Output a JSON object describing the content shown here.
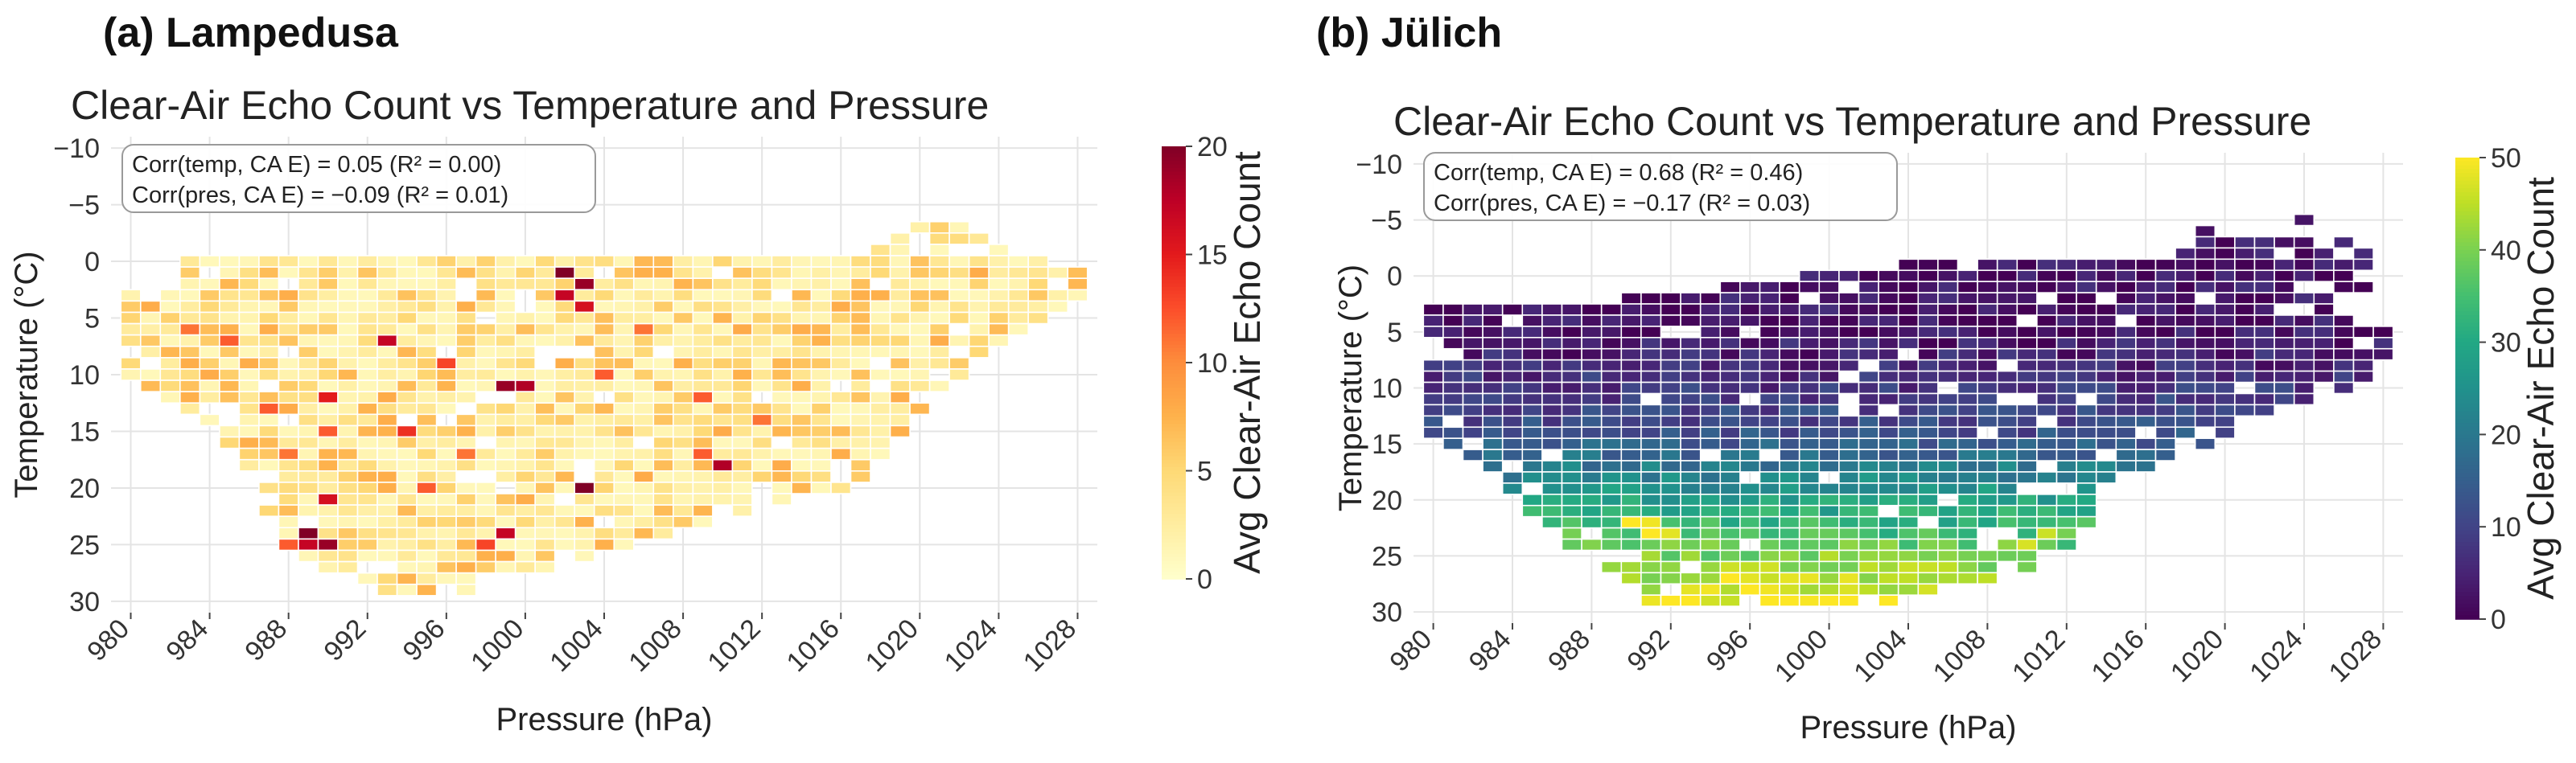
{
  "chart_data": [
    {
      "id": "a",
      "type": "heatmap",
      "panel_label": "(a) Lampedusa",
      "title": "Clear-Air Echo Count vs Temperature and Pressure",
      "xlabel": "Pressure (hPa)",
      "ylabel": "Temperature (°C)",
      "colorbar_label": "Avg Clear-Air Echo Count",
      "colormap": "YlOrRd",
      "xlim": [
        979,
        1029
      ],
      "ylim": [
        -11,
        31
      ],
      "clim": [
        0,
        20
      ],
      "xticks": [
        980,
        984,
        988,
        992,
        996,
        1000,
        1004,
        1008,
        1012,
        1016,
        1020,
        1024,
        1028
      ],
      "yticks": [
        -10,
        -5,
        0,
        5,
        10,
        15,
        20,
        25,
        30
      ],
      "yticklabels": [
        "−10",
        "−5",
        "0",
        "5",
        "10",
        "15",
        "20",
        "25",
        "30"
      ],
      "cbar_ticks": [
        0,
        5,
        10,
        15,
        20
      ],
      "annotations": [
        "Corr(temp, CA E) = 0.05 (R² = 0.00)",
        "Corr(pres, CA E) = −0.09 (R² = 0.01)"
      ],
      "grid": true,
      "bin_width_hPa": 1,
      "bin_height_C": 1,
      "extent_rows": [
        {
          "t": -3,
          "p": [
            1020,
            1022
          ]
        },
        {
          "t": -2,
          "p": [
            1019,
            1023
          ]
        },
        {
          "t": -1,
          "p": [
            1018,
            1024
          ]
        },
        {
          "t": 0,
          "p": [
            983,
            1026
          ]
        },
        {
          "t": 1,
          "p": [
            982,
            1028
          ]
        },
        {
          "t": 2,
          "p": [
            981,
            1028
          ]
        },
        {
          "t": 3,
          "p": [
            980,
            1028
          ]
        },
        {
          "t": 4,
          "p": [
            980,
            1027
          ]
        },
        {
          "t": 5,
          "p": [
            980,
            1026
          ]
        },
        {
          "t": 6,
          "p": [
            980,
            1025
          ]
        },
        {
          "t": 7,
          "p": [
            980,
            1024
          ]
        },
        {
          "t": 8,
          "p": [
            980,
            1023
          ]
        },
        {
          "t": 9,
          "p": [
            980,
            1022
          ]
        },
        {
          "t": 10,
          "p": [
            980,
            1022
          ]
        },
        {
          "t": 11,
          "p": [
            981,
            1021
          ]
        },
        {
          "t": 12,
          "p": [
            982,
            1020
          ]
        },
        {
          "t": 13,
          "p": [
            983,
            1020
          ]
        },
        {
          "t": 14,
          "p": [
            984,
            1019
          ]
        },
        {
          "t": 15,
          "p": [
            985,
            1019
          ]
        },
        {
          "t": 16,
          "p": [
            985,
            1018
          ]
        },
        {
          "t": 17,
          "p": [
            986,
            1018
          ]
        },
        {
          "t": 18,
          "p": [
            986,
            1017
          ]
        },
        {
          "t": 19,
          "p": [
            987,
            1017
          ]
        },
        {
          "t": 20,
          "p": [
            987,
            1016
          ]
        },
        {
          "t": 21,
          "p": [
            987,
            1013
          ]
        },
        {
          "t": 22,
          "p": [
            987,
            1011
          ]
        },
        {
          "t": 23,
          "p": [
            988,
            1009
          ]
        },
        {
          "t": 24,
          "p": [
            988,
            1007
          ]
        },
        {
          "t": 25,
          "p": [
            988,
            1005
          ]
        },
        {
          "t": 26,
          "p": [
            989,
            1003
          ]
        },
        {
          "t": 27,
          "p": [
            990,
            1001
          ]
        },
        {
          "t": 28,
          "p": [
            991,
            999
          ]
        },
        {
          "t": 29,
          "p": [
            992,
            997
          ]
        }
      ],
      "background_value_range": [
        1,
        8
      ],
      "hot_cells": [
        {
          "p": 1002,
          "t": 1,
          "v": 20
        },
        {
          "p": 1003,
          "t": 2,
          "v": 19
        },
        {
          "p": 1002,
          "t": 3,
          "v": 17
        },
        {
          "p": 1003,
          "t": 4,
          "v": 16
        },
        {
          "p": 1001,
          "t": 8,
          "v": 17
        },
        {
          "p": 999,
          "t": 11,
          "v": 19
        },
        {
          "p": 1000,
          "t": 11,
          "v": 18
        },
        {
          "p": 1004,
          "t": 10,
          "v": 12
        },
        {
          "p": 1004,
          "t": 12,
          "v": 14
        },
        {
          "p": 996,
          "t": 9,
          "v": 13
        },
        {
          "p": 993,
          "t": 7,
          "v": 17
        },
        {
          "p": 994,
          "t": 14,
          "v": 16
        },
        {
          "p": 994,
          "t": 15,
          "v": 14
        },
        {
          "p": 990,
          "t": 12,
          "v": 15
        },
        {
          "p": 990,
          "t": 15,
          "v": 12
        },
        {
          "p": 987,
          "t": 13,
          "v": 12
        },
        {
          "p": 988,
          "t": 17,
          "v": 11
        },
        {
          "p": 985,
          "t": 7,
          "v": 12
        },
        {
          "p": 983,
          "t": 6,
          "v": 11
        },
        {
          "p": 990,
          "t": 21,
          "v": 16
        },
        {
          "p": 989,
          "t": 23,
          "v": 18
        },
        {
          "p": 989,
          "t": 24,
          "v": 20
        },
        {
          "p": 990,
          "t": 25,
          "v": 19
        },
        {
          "p": 989,
          "t": 25,
          "v": 17
        },
        {
          "p": 988,
          "t": 25,
          "v": 12
        },
        {
          "p": 987,
          "t": 24,
          "v": 10
        },
        {
          "p": 999,
          "t": 24,
          "v": 17
        },
        {
          "p": 998,
          "t": 25,
          "v": 13
        },
        {
          "p": 1003,
          "t": 20,
          "v": 20
        },
        {
          "p": 1003,
          "t": 19,
          "v": 13
        },
        {
          "p": 1010,
          "t": 18,
          "v": 18
        },
        {
          "p": 1009,
          "t": 17,
          "v": 12
        },
        {
          "p": 1009,
          "t": 12,
          "v": 12
        },
        {
          "p": 1012,
          "t": 14,
          "v": 11
        },
        {
          "p": 1006,
          "t": 6,
          "v": 11
        },
        {
          "p": 997,
          "t": 17,
          "v": 11
        },
        {
          "p": 995,
          "t": 20,
          "v": 12
        }
      ]
    },
    {
      "id": "b",
      "type": "heatmap",
      "panel_label": "(b) Jülich",
      "title": "Clear-Air Echo Count vs Temperature and Pressure",
      "xlabel": "Pressure (hPa)",
      "ylabel": "Temperature (°C)",
      "colorbar_label": "Avg Clear-Air Echo Count",
      "colormap": "viridis",
      "xlim": [
        979,
        1029
      ],
      "ylim": [
        -11,
        31
      ],
      "clim": [
        0,
        50
      ],
      "xticks": [
        980,
        984,
        988,
        992,
        996,
        1000,
        1004,
        1008,
        1012,
        1016,
        1020,
        1024,
        1028
      ],
      "yticks": [
        -10,
        -5,
        0,
        5,
        10,
        15,
        20,
        25,
        30
      ],
      "yticklabels": [
        "−10",
        "−5",
        "0",
        "5",
        "10",
        "15",
        "20",
        "25",
        "30"
      ],
      "cbar_ticks": [
        0,
        10,
        20,
        30,
        40,
        50
      ],
      "annotations": [
        "Corr(temp, CA E) = 0.68 (R² = 0.46)",
        "Corr(pres, CA E) = −0.17 (R² = 0.03)"
      ],
      "grid": true,
      "bin_width_hPa": 1,
      "bin_height_C": 1,
      "extent_rows": [
        {
          "t": -5,
          "p": [
            1024,
            1025
          ]
        },
        {
          "t": -4,
          "p": [
            1019,
            1020
          ]
        },
        {
          "t": -3,
          "p": [
            1019,
            1026
          ]
        },
        {
          "t": -2,
          "p": [
            1018,
            1027
          ]
        },
        {
          "t": -1,
          "p": [
            1004,
            1027
          ]
        },
        {
          "t": 0,
          "p": [
            999,
            1027
          ]
        },
        {
          "t": 1,
          "p": [
            995,
            1027
          ]
        },
        {
          "t": 2,
          "p": [
            990,
            1026
          ]
        },
        {
          "t": 3,
          "p": [
            980,
            1026
          ]
        },
        {
          "t": 4,
          "p": [
            980,
            1027
          ]
        },
        {
          "t": 5,
          "p": [
            980,
            1028
          ]
        },
        {
          "t": 6,
          "p": [
            980,
            1028
          ]
        },
        {
          "t": 7,
          "p": [
            980,
            1028
          ]
        },
        {
          "t": 8,
          "p": [
            980,
            1027
          ]
        },
        {
          "t": 9,
          "p": [
            980,
            1027
          ]
        },
        {
          "t": 10,
          "p": [
            980,
            1026
          ]
        },
        {
          "t": 11,
          "p": [
            980,
            1024
          ]
        },
        {
          "t": 12,
          "p": [
            980,
            1022
          ]
        },
        {
          "t": 13,
          "p": [
            980,
            1021
          ]
        },
        {
          "t": 14,
          "p": [
            980,
            1020
          ]
        },
        {
          "t": 15,
          "p": [
            981,
            1019
          ]
        },
        {
          "t": 16,
          "p": [
            982,
            1018
          ]
        },
        {
          "t": 17,
          "p": [
            983,
            1016
          ]
        },
        {
          "t": 18,
          "p": [
            984,
            1014
          ]
        },
        {
          "t": 19,
          "p": [
            984,
            1013
          ]
        },
        {
          "t": 20,
          "p": [
            985,
            1013
          ]
        },
        {
          "t": 21,
          "p": [
            985,
            1013
          ]
        },
        {
          "t": 22,
          "p": [
            986,
            1013
          ]
        },
        {
          "t": 23,
          "p": [
            987,
            1012
          ]
        },
        {
          "t": 24,
          "p": [
            987,
            1012
          ]
        },
        {
          "t": 25,
          "p": [
            988,
            1011
          ]
        },
        {
          "t": 26,
          "p": [
            989,
            1010
          ]
        },
        {
          "t": 27,
          "p": [
            990,
            1008
          ]
        },
        {
          "t": 28,
          "p": [
            991,
            1005
          ]
        },
        {
          "t": 29,
          "p": [
            991,
            1003
          ]
        }
      ],
      "value_model": "increases with temperature: ~3 at <=5°C, ~12 at 14°C, ~28 at 20°C, ~40 at 25°C, ~48 at 29°C",
      "hot_cells": [
        {
          "p": 990,
          "t": 22,
          "v": 50
        },
        {
          "p": 991,
          "t": 22,
          "v": 49
        },
        {
          "p": 991,
          "t": 23,
          "v": 50
        },
        {
          "p": 992,
          "t": 23,
          "v": 48
        },
        {
          "p": 995,
          "t": 27,
          "v": 50
        },
        {
          "p": 996,
          "t": 28,
          "v": 50
        },
        {
          "p": 997,
          "t": 28,
          "v": 49
        },
        {
          "p": 1010,
          "t": 24,
          "v": 47
        },
        {
          "p": 1011,
          "t": 23,
          "v": 46
        }
      ]
    }
  ]
}
